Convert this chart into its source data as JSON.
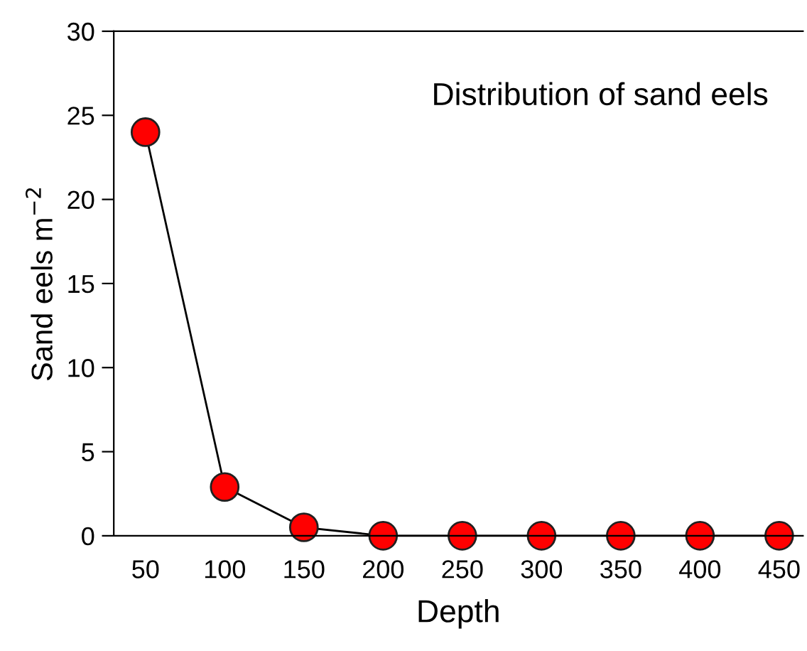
{
  "chart_data": {
    "type": "line",
    "xlabel": "Depth",
    "ylabel": "Sand eels m$^{−2}$",
    "annotations": [
      "Distribution of sand eels"
    ],
    "x": [
      50,
      100,
      150,
      200,
      250,
      300,
      350,
      400,
      450
    ],
    "series": [
      {
        "color": "#ff0000",
        "values": [
          24,
          2.9,
          0.5,
          0,
          0,
          0,
          0,
          0,
          0
        ]
      }
    ],
    "xlim": [
      30,
      465
    ],
    "xticks": [
      50,
      100,
      150,
      200,
      250,
      300,
      350,
      400,
      450
    ],
    "ylim": [
      0,
      30
    ],
    "yticks": [
      0,
      5,
      10,
      15,
      20,
      25,
      30
    ],
    "marker": "circle",
    "line_style": "solid",
    "grid": false,
    "legend": false
  }
}
